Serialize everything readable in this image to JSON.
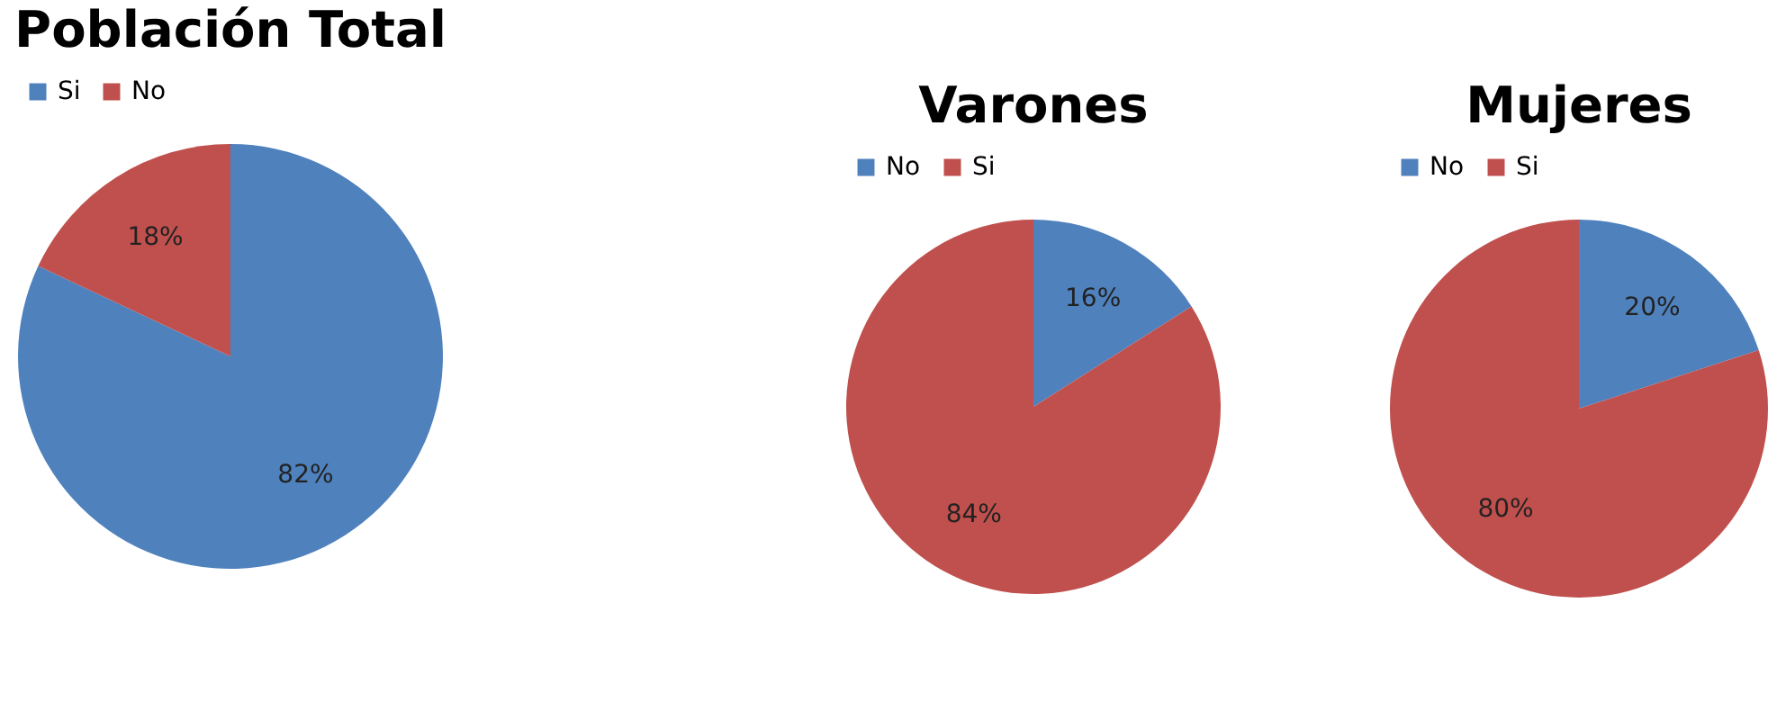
{
  "chart_data": [
    {
      "type": "pie",
      "title": "Población Total",
      "categories": [
        "Si",
        "No"
      ],
      "values": [
        82,
        18
      ],
      "colors": [
        "#4f81bd",
        "#c0504d"
      ],
      "value_labels": [
        "82%",
        "18%"
      ],
      "legend": "top"
    },
    {
      "type": "pie",
      "title": "Varones",
      "categories": [
        "No",
        "Si"
      ],
      "values": [
        16,
        84
      ],
      "colors": [
        "#4f81bd",
        "#c0504d"
      ],
      "value_labels": [
        "16%",
        "84%"
      ],
      "legend": "top"
    },
    {
      "type": "pie",
      "title": "Mujeres",
      "categories": [
        "No",
        "Si"
      ],
      "values": [
        20,
        80
      ],
      "colors": [
        "#4f81bd",
        "#c0504d"
      ],
      "value_labels": [
        "20%",
        "80%"
      ],
      "legend": "top"
    }
  ]
}
